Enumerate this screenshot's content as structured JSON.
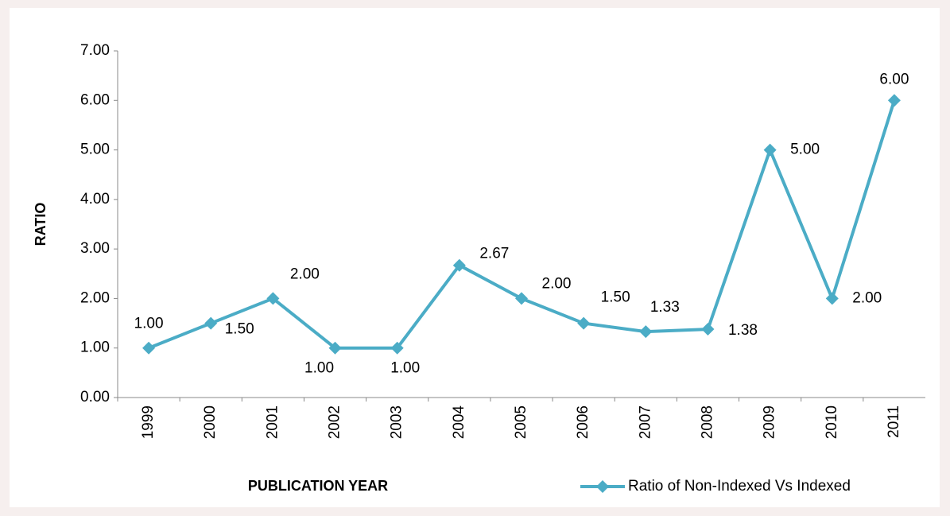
{
  "chart_data": {
    "type": "line",
    "categories": [
      "1999",
      "2000",
      "2001",
      "2002",
      "2003",
      "2004",
      "2005",
      "2006",
      "2007",
      "2008",
      "2009",
      "2010",
      "2011"
    ],
    "series": [
      {
        "name": "Ratio of Non-Indexed Vs Indexed",
        "color": "#4bacc6",
        "values": [
          1.0,
          1.5,
          2.0,
          1.0,
          1.0,
          2.67,
          2.0,
          1.5,
          1.33,
          1.38,
          5.0,
          2.0,
          6.0
        ],
        "value_labels": [
          "1.00",
          "1.50",
          "2.00",
          "1.00",
          "1.00",
          "2.67",
          "2.00",
          "1.50",
          "1.33",
          "1.38",
          "5.00",
          "2.00",
          "6.00"
        ]
      }
    ],
    "x_label": "PUBLICATION YEAR",
    "y_label": "RATIO",
    "ylim": [
      0,
      7
    ],
    "yticks": [
      {
        "value": 0,
        "label": "0.00"
      },
      {
        "value": 1,
        "label": "1.00"
      },
      {
        "value": 2,
        "label": "2.00"
      },
      {
        "value": 3,
        "label": "3.00"
      },
      {
        "value": 4,
        "label": "4.00"
      },
      {
        "value": 5,
        "label": "5.00"
      },
      {
        "value": 6,
        "label": "6.00"
      },
      {
        "value": 7,
        "label": "7.00"
      }
    ],
    "legend": "bottom-right",
    "grid": false
  }
}
